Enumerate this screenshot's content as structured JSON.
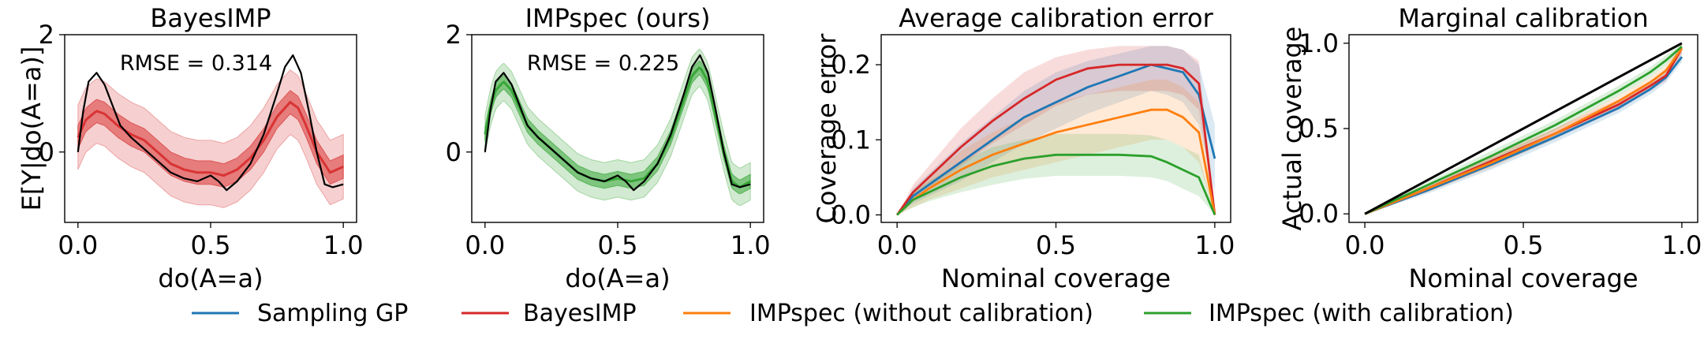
{
  "colors": {
    "sampling_gp": "#1f77b4",
    "bayesimp": "#d62728",
    "impspec_nocal": "#ff7f0e",
    "impspec_cal": "#2ca02c",
    "truth": "#000000"
  },
  "legend": [
    {
      "label": "Sampling GP",
      "color_key": "sampling_gp"
    },
    {
      "label": "BayesIMP",
      "color_key": "bayesimp"
    },
    {
      "label": "IMPspec (without calibration)",
      "color_key": "impspec_nocal"
    },
    {
      "label": "IMPspec (with calibration)",
      "color_key": "impspec_cal"
    }
  ],
  "chart_data": [
    {
      "type": "line",
      "title": "BayesIMP",
      "xlabel": "do(A=a)",
      "ylabel": "E[Y|do(A=a)]",
      "annotation": "RMSE = 0.314",
      "xlim": [
        -0.05,
        1.05
      ],
      "ylim": [
        -1.2,
        2.0
      ],
      "xticks": [
        0.0,
        0.5,
        1.0
      ],
      "xtick_labels": [
        "0.0",
        "0.5",
        "1.0"
      ],
      "yticks": [
        0,
        2
      ],
      "ytick_labels": [
        "0",
        "2"
      ],
      "band_color_key": "bayesimp",
      "truth": {
        "x": [
          0.0,
          0.02,
          0.04,
          0.07,
          0.1,
          0.13,
          0.16,
          0.2,
          0.25,
          0.3,
          0.35,
          0.4,
          0.45,
          0.5,
          0.53,
          0.56,
          0.6,
          0.65,
          0.7,
          0.75,
          0.78,
          0.81,
          0.84,
          0.87,
          0.9,
          0.93,
          0.96,
          1.0
        ],
        "y": [
          0.0,
          0.7,
          1.2,
          1.35,
          1.15,
          0.8,
          0.45,
          0.25,
          0.05,
          -0.15,
          -0.35,
          -0.45,
          -0.5,
          -0.4,
          -0.5,
          -0.65,
          -0.5,
          -0.2,
          0.3,
          1.0,
          1.45,
          1.65,
          1.35,
          0.7,
          0.0,
          -0.55,
          -0.6,
          -0.55
        ]
      },
      "mean": {
        "x": [
          0.0,
          0.03,
          0.07,
          0.1,
          0.15,
          0.2,
          0.25,
          0.3,
          0.35,
          0.4,
          0.45,
          0.5,
          0.55,
          0.6,
          0.65,
          0.7,
          0.75,
          0.8,
          0.83,
          0.86,
          0.9,
          0.95,
          1.0
        ],
        "y": [
          0.25,
          0.55,
          0.7,
          0.65,
          0.45,
          0.3,
          0.2,
          0.0,
          -0.2,
          -0.3,
          -0.35,
          -0.35,
          -0.4,
          -0.3,
          -0.1,
          0.2,
          0.6,
          0.85,
          0.75,
          0.45,
          0.0,
          -0.35,
          -0.25
        ]
      },
      "inner_halfwidth": 0.2,
      "outer_halfwidth": 0.55
    },
    {
      "type": "line",
      "title": "IMPspec (ours)",
      "xlabel": "do(A=a)",
      "ylabel": "",
      "annotation": "RMSE = 0.225",
      "xlim": [
        -0.05,
        1.05
      ],
      "ylim": [
        -1.2,
        2.0
      ],
      "xticks": [
        0.0,
        0.5,
        1.0
      ],
      "xtick_labels": [
        "0.0",
        "0.5",
        "1.0"
      ],
      "yticks": [
        0,
        2
      ],
      "ytick_labels": [
        "0",
        "2"
      ],
      "band_color_key": "impspec_cal",
      "truth": {
        "x": [
          0.0,
          0.02,
          0.04,
          0.07,
          0.1,
          0.13,
          0.16,
          0.2,
          0.25,
          0.3,
          0.35,
          0.4,
          0.45,
          0.5,
          0.53,
          0.56,
          0.6,
          0.65,
          0.7,
          0.75,
          0.78,
          0.81,
          0.84,
          0.87,
          0.9,
          0.93,
          0.96,
          1.0
        ],
        "y": [
          0.0,
          0.7,
          1.2,
          1.35,
          1.15,
          0.8,
          0.45,
          0.25,
          0.05,
          -0.15,
          -0.35,
          -0.45,
          -0.5,
          -0.4,
          -0.5,
          -0.65,
          -0.5,
          -0.2,
          0.3,
          1.0,
          1.45,
          1.65,
          1.35,
          0.7,
          0.0,
          -0.55,
          -0.6,
          -0.55
        ]
      },
      "mean": {
        "x": [
          0.0,
          0.02,
          0.04,
          0.07,
          0.1,
          0.13,
          0.16,
          0.2,
          0.25,
          0.3,
          0.35,
          0.4,
          0.45,
          0.5,
          0.55,
          0.6,
          0.65,
          0.7,
          0.75,
          0.78,
          0.81,
          0.84,
          0.87,
          0.9,
          0.93,
          0.96,
          1.0
        ],
        "y": [
          0.3,
          0.75,
          1.05,
          1.2,
          1.05,
          0.75,
          0.45,
          0.25,
          0.05,
          -0.15,
          -0.35,
          -0.45,
          -0.5,
          -0.45,
          -0.5,
          -0.45,
          -0.2,
          0.25,
          0.9,
          1.3,
          1.45,
          1.2,
          0.6,
          0.0,
          -0.5,
          -0.6,
          -0.5
        ]
      },
      "inner_halfwidth": 0.12,
      "outer_halfwidth": 0.32
    },
    {
      "type": "line",
      "title": "Average calibration error",
      "xlabel": "Nominal coverage",
      "ylabel": "Coverage error",
      "xlim": [
        -0.05,
        1.05
      ],
      "ylim": [
        -0.01,
        0.24
      ],
      "xticks": [
        0.0,
        0.5,
        1.0
      ],
      "xtick_labels": [
        "0.0",
        "0.5",
        "1.0"
      ],
      "yticks": [
        0.0,
        0.1,
        0.2
      ],
      "ytick_labels": [
        "0.0",
        "0.1",
        "0.2"
      ],
      "series": [
        {
          "name": "Sampling GP",
          "color_key": "sampling_gp",
          "x": [
            0.0,
            0.05,
            0.1,
            0.2,
            0.3,
            0.4,
            0.5,
            0.6,
            0.7,
            0.8,
            0.85,
            0.9,
            0.95,
            1.0
          ],
          "y": [
            0.0,
            0.025,
            0.04,
            0.07,
            0.1,
            0.13,
            0.15,
            0.17,
            0.185,
            0.2,
            0.195,
            0.19,
            0.16,
            0.075
          ],
          "lower": [
            0.0,
            0.015,
            0.025,
            0.045,
            0.07,
            0.095,
            0.115,
            0.135,
            0.15,
            0.165,
            0.16,
            0.15,
            0.12,
            0.03
          ],
          "upper": [
            0.0,
            0.035,
            0.055,
            0.095,
            0.13,
            0.165,
            0.19,
            0.205,
            0.215,
            0.225,
            0.225,
            0.22,
            0.2,
            0.12
          ]
        },
        {
          "name": "BayesIMP",
          "color_key": "bayesimp",
          "x": [
            0.0,
            0.05,
            0.1,
            0.2,
            0.3,
            0.4,
            0.5,
            0.6,
            0.7,
            0.8,
            0.85,
            0.9,
            0.95,
            1.0
          ],
          "y": [
            0.0,
            0.03,
            0.05,
            0.09,
            0.125,
            0.155,
            0.18,
            0.195,
            0.2,
            0.2,
            0.2,
            0.195,
            0.175,
            0.0
          ],
          "lower": [
            0.0,
            0.02,
            0.035,
            0.065,
            0.095,
            0.12,
            0.145,
            0.16,
            0.165,
            0.165,
            0.165,
            0.16,
            0.14,
            0.0
          ],
          "upper": [
            0.0,
            0.04,
            0.065,
            0.115,
            0.155,
            0.19,
            0.21,
            0.22,
            0.225,
            0.225,
            0.225,
            0.22,
            0.205,
            0.0
          ]
        },
        {
          "name": "IMPspec (without calibration)",
          "color_key": "impspec_nocal",
          "x": [
            0.0,
            0.05,
            0.1,
            0.2,
            0.3,
            0.4,
            0.5,
            0.6,
            0.7,
            0.8,
            0.85,
            0.9,
            0.95,
            1.0
          ],
          "y": [
            0.0,
            0.02,
            0.035,
            0.06,
            0.08,
            0.095,
            0.11,
            0.12,
            0.13,
            0.14,
            0.14,
            0.13,
            0.11,
            0.0
          ],
          "lower": [
            0.0,
            0.01,
            0.02,
            0.035,
            0.05,
            0.06,
            0.07,
            0.08,
            0.09,
            0.1,
            0.1,
            0.09,
            0.07,
            0.0
          ],
          "upper": [
            0.0,
            0.03,
            0.05,
            0.085,
            0.11,
            0.13,
            0.15,
            0.16,
            0.17,
            0.18,
            0.18,
            0.17,
            0.15,
            0.0
          ]
        },
        {
          "name": "IMPspec (with calibration)",
          "color_key": "impspec_cal",
          "x": [
            0.0,
            0.05,
            0.1,
            0.2,
            0.3,
            0.4,
            0.5,
            0.6,
            0.7,
            0.8,
            0.85,
            0.9,
            0.95,
            1.0
          ],
          "y": [
            0.0,
            0.02,
            0.03,
            0.05,
            0.065,
            0.075,
            0.08,
            0.08,
            0.08,
            0.078,
            0.07,
            0.06,
            0.05,
            0.0
          ],
          "lower": [
            0.0,
            0.01,
            0.018,
            0.03,
            0.04,
            0.048,
            0.052,
            0.052,
            0.052,
            0.05,
            0.045,
            0.035,
            0.025,
            0.0
          ],
          "upper": [
            0.0,
            0.03,
            0.045,
            0.07,
            0.09,
            0.1,
            0.108,
            0.108,
            0.108,
            0.106,
            0.1,
            0.09,
            0.08,
            0.0
          ]
        }
      ]
    },
    {
      "type": "line",
      "title": "Marginal calibration",
      "xlabel": "Nominal coverage",
      "ylabel": "Actual coverage",
      "xlim": [
        -0.05,
        1.05
      ],
      "ylim": [
        -0.05,
        1.05
      ],
      "xticks": [
        0.0,
        0.5,
        1.0
      ],
      "xtick_labels": [
        "0.0",
        "0.5",
        "1.0"
      ],
      "yticks": [
        0.0,
        0.5,
        1.0
      ],
      "ytick_labels": [
        "0.0",
        "0.5",
        "1.0"
      ],
      "series": [
        {
          "name": "Sampling GP",
          "color_key": "sampling_gp",
          "x": [
            0.0,
            0.2,
            0.4,
            0.6,
            0.8,
            0.9,
            0.95,
            1.0
          ],
          "y": [
            0.0,
            0.14,
            0.29,
            0.45,
            0.62,
            0.73,
            0.8,
            0.92
          ],
          "lower": [
            0.0,
            0.12,
            0.26,
            0.42,
            0.59,
            0.7,
            0.77,
            0.89
          ],
          "upper": [
            0.0,
            0.16,
            0.32,
            0.48,
            0.65,
            0.76,
            0.83,
            0.95
          ]
        },
        {
          "name": "BayesIMP",
          "color_key": "bayesimp",
          "x": [
            0.0,
            0.2,
            0.4,
            0.6,
            0.8,
            0.9,
            0.95,
            1.0
          ],
          "y": [
            0.0,
            0.15,
            0.31,
            0.47,
            0.64,
            0.75,
            0.81,
            0.97
          ],
          "lower": [
            0.0,
            0.13,
            0.28,
            0.44,
            0.61,
            0.72,
            0.78,
            0.94
          ],
          "upper": [
            0.0,
            0.17,
            0.34,
            0.5,
            0.67,
            0.78,
            0.84,
            1.0
          ]
        },
        {
          "name": "IMPspec (without calibration)",
          "color_key": "impspec_nocal",
          "x": [
            0.0,
            0.2,
            0.4,
            0.6,
            0.8,
            0.9,
            0.95,
            1.0
          ],
          "y": [
            0.0,
            0.15,
            0.3,
            0.47,
            0.66,
            0.77,
            0.84,
            0.97
          ],
          "lower": [
            0.0,
            0.13,
            0.27,
            0.44,
            0.63,
            0.74,
            0.81,
            0.94
          ],
          "upper": [
            0.0,
            0.17,
            0.33,
            0.5,
            0.69,
            0.8,
            0.87,
            1.0
          ]
        },
        {
          "name": "IMPspec (with calibration)",
          "color_key": "impspec_cal",
          "x": [
            0.0,
            0.2,
            0.4,
            0.6,
            0.8,
            0.9,
            0.95,
            1.0
          ],
          "y": [
            0.0,
            0.17,
            0.34,
            0.52,
            0.72,
            0.83,
            0.9,
            0.98
          ],
          "lower": [
            0.0,
            0.15,
            0.31,
            0.49,
            0.69,
            0.8,
            0.87,
            0.96
          ],
          "upper": [
            0.0,
            0.19,
            0.37,
            0.55,
            0.75,
            0.86,
            0.93,
            1.0
          ]
        },
        {
          "name": "",
          "color_key": "truth",
          "x": [
            0.0,
            1.0
          ],
          "y": [
            0.0,
            1.0
          ]
        }
      ]
    }
  ]
}
